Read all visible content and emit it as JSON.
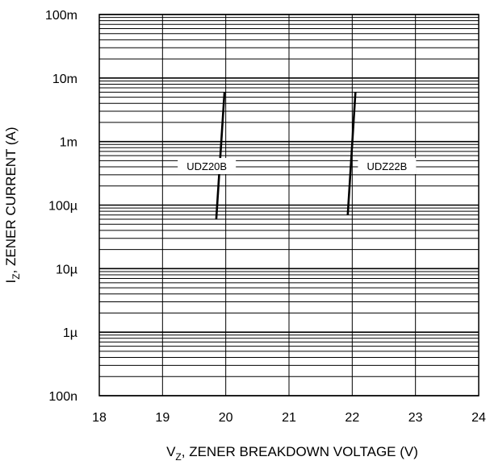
{
  "chart_data": {
    "type": "line",
    "x_scale": "linear",
    "y_scale": "log",
    "xlim": [
      18,
      24
    ],
    "ylim": [
      1e-07,
      0.1
    ],
    "x_ticks": [
      18,
      19,
      20,
      21,
      22,
      23,
      24
    ],
    "x_tick_labels": [
      "18",
      "19",
      "20",
      "21",
      "22",
      "23",
      "24"
    ],
    "y_ticks": [
      1e-07,
      1e-06,
      1e-05,
      0.0001,
      0.001,
      0.01,
      0.1
    ],
    "y_tick_labels": [
      "100n",
      "1µ",
      "10µ",
      "100µ",
      "1m",
      "10m",
      "100m"
    ],
    "xlabel": {
      "main": "V",
      "sub": "Z",
      "rest": ", ZENER BREAKDOWN VOLTAGE (V)"
    },
    "ylabel": {
      "main": "I",
      "sub": "Z",
      "rest": ", ZENER CURRENT (A)"
    },
    "grid": true,
    "series": [
      {
        "name": "UDZ20B",
        "label_at": {
          "x": 19.7,
          "y": 0.0004
        },
        "points": [
          [
            19.85,
            6e-05
          ],
          [
            19.98,
            0.006
          ]
        ]
      },
      {
        "name": "UDZ22B",
        "label_at": {
          "x": 22.55,
          "y": 0.0004
        },
        "points": [
          [
            21.93,
            7e-05
          ],
          [
            22.05,
            0.006
          ]
        ]
      }
    ],
    "colors": {
      "line": "#000000",
      "grid": "#000000"
    }
  }
}
